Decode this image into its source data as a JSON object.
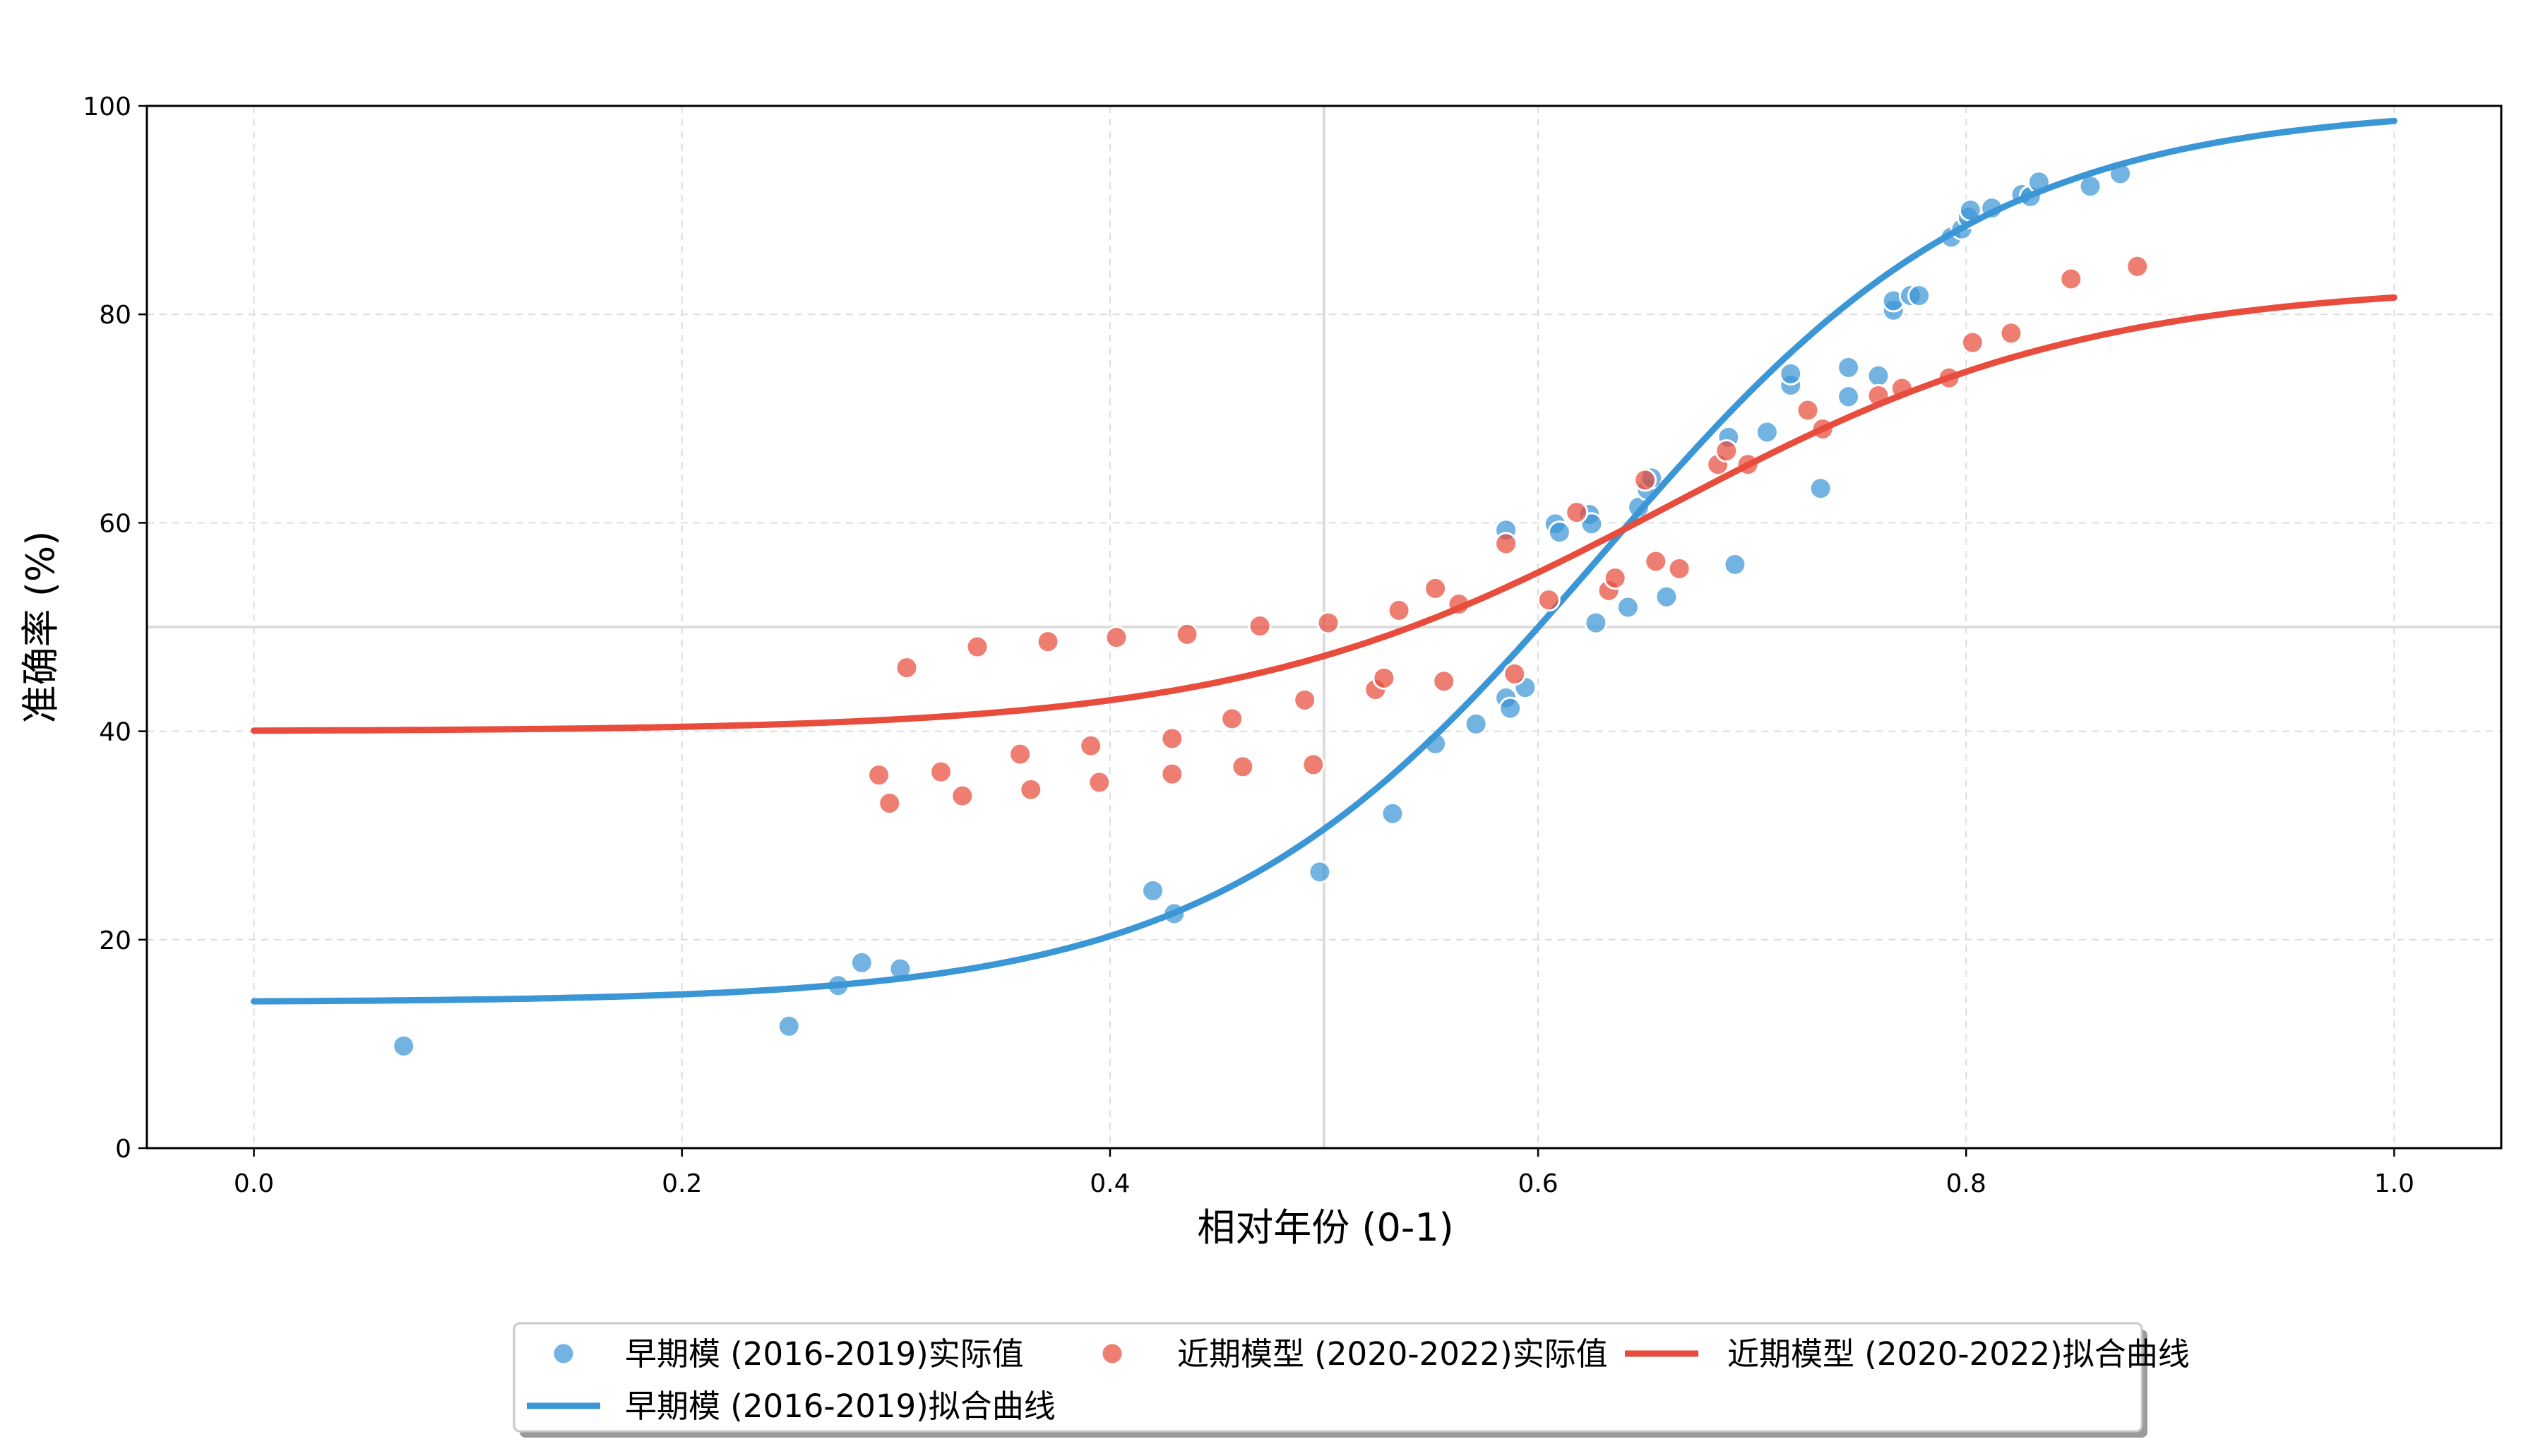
{
  "chart_data": {
    "type": "scatter",
    "title": "",
    "xlabel": "相对年份 (0-1)",
    "ylabel": "准确率 (%)",
    "xlim": [
      -0.05,
      1.05
    ],
    "ylim": [
      0,
      100
    ],
    "x_ticks": [
      0.0,
      0.2,
      0.4,
      0.6,
      0.8,
      1.0
    ],
    "y_ticks": [
      0,
      20,
      40,
      60,
      80,
      100
    ],
    "grid": true,
    "reference_lines": {
      "x": 0.5,
      "y": 50
    },
    "legend_position": "bottom-center",
    "series": [
      {
        "name": "早期模 (2016-2019)实际值",
        "kind": "scatter",
        "color": "#3b96d6",
        "points": [
          [
            0.07,
            9.8
          ],
          [
            0.25,
            11.7
          ],
          [
            0.273,
            15.6
          ],
          [
            0.284,
            17.8
          ],
          [
            0.302,
            17.2
          ],
          [
            0.42,
            24.7
          ],
          [
            0.43,
            22.5
          ],
          [
            0.498,
            26.5
          ],
          [
            0.532,
            32.1
          ],
          [
            0.552,
            38.8
          ],
          [
            0.571,
            40.7
          ],
          [
            0.585,
            43.2
          ],
          [
            0.587,
            42.2
          ],
          [
            0.594,
            44.2
          ],
          [
            0.585,
            59.3
          ],
          [
            0.608,
            59.9
          ],
          [
            0.61,
            59.1
          ],
          [
            0.624,
            60.8
          ],
          [
            0.625,
            59.9
          ],
          [
            0.627,
            50.4
          ],
          [
            0.642,
            51.9
          ],
          [
            0.647,
            61.5
          ],
          [
            0.651,
            63.2
          ],
          [
            0.653,
            64.3
          ],
          [
            0.66,
            52.9
          ],
          [
            0.689,
            68.2
          ],
          [
            0.692,
            56.0
          ],
          [
            0.707,
            68.7
          ],
          [
            0.718,
            73.2
          ],
          [
            0.718,
            74.3
          ],
          [
            0.732,
            63.3
          ],
          [
            0.745,
            72.1
          ],
          [
            0.745,
            74.9
          ],
          [
            0.759,
            74.1
          ],
          [
            0.766,
            80.4
          ],
          [
            0.766,
            81.3
          ],
          [
            0.774,
            81.8
          ],
          [
            0.778,
            81.8
          ],
          [
            0.793,
            87.4
          ],
          [
            0.798,
            88.2
          ],
          [
            0.801,
            89.3
          ],
          [
            0.802,
            90.0
          ],
          [
            0.812,
            90.2
          ],
          [
            0.826,
            91.5
          ],
          [
            0.83,
            91.3
          ],
          [
            0.834,
            92.7
          ],
          [
            0.858,
            92.3
          ],
          [
            0.872,
            93.5
          ]
        ]
      },
      {
        "name": "早期模 (2016-2019)拟合曲线",
        "kind": "line",
        "color": "#3b96d6",
        "curve": {
          "lower": 14,
          "upper": 100,
          "center": 0.63,
          "steepness": 11
        }
      },
      {
        "name": "近期模型 (2020-2022)实际值",
        "kind": "scatter",
        "color": "#e74c3c",
        "points": [
          [
            0.292,
            35.8
          ],
          [
            0.297,
            33.1
          ],
          [
            0.305,
            46.1
          ],
          [
            0.321,
            36.1
          ],
          [
            0.331,
            33.8
          ],
          [
            0.338,
            48.1
          ],
          [
            0.358,
            37.8
          ],
          [
            0.363,
            34.4
          ],
          [
            0.371,
            48.6
          ],
          [
            0.391,
            38.6
          ],
          [
            0.395,
            35.1
          ],
          [
            0.403,
            49.0
          ],
          [
            0.429,
            39.3
          ],
          [
            0.429,
            35.9
          ],
          [
            0.436,
            49.3
          ],
          [
            0.457,
            41.2
          ],
          [
            0.462,
            36.6
          ],
          [
            0.47,
            50.1
          ],
          [
            0.491,
            43.0
          ],
          [
            0.495,
            36.8
          ],
          [
            0.502,
            50.4
          ],
          [
            0.524,
            44.0
          ],
          [
            0.528,
            45.1
          ],
          [
            0.535,
            51.6
          ],
          [
            0.552,
            53.7
          ],
          [
            0.556,
            44.8
          ],
          [
            0.563,
            52.2
          ],
          [
            0.585,
            58.0
          ],
          [
            0.589,
            45.5
          ],
          [
            0.605,
            52.6
          ],
          [
            0.618,
            61.0
          ],
          [
            0.633,
            53.5
          ],
          [
            0.636,
            54.7
          ],
          [
            0.65,
            64.1
          ],
          [
            0.655,
            56.3
          ],
          [
            0.666,
            55.6
          ],
          [
            0.684,
            65.6
          ],
          [
            0.688,
            66.9
          ],
          [
            0.698,
            65.6
          ],
          [
            0.726,
            70.8
          ],
          [
            0.733,
            69.0
          ],
          [
            0.759,
            72.2
          ],
          [
            0.77,
            72.9
          ],
          [
            0.792,
            73.9
          ],
          [
            0.803,
            77.3
          ],
          [
            0.821,
            78.2
          ],
          [
            0.849,
            83.4
          ],
          [
            0.88,
            84.6
          ]
        ]
      },
      {
        "name": "近期模型 (2020-2022)拟合曲线",
        "kind": "line",
        "color": "#e74c3c",
        "curve": {
          "lower": 40,
          "upper": 83,
          "center": 0.66,
          "steepness": 10
        }
      }
    ],
    "legend": [
      {
        "label": "早期模 (2016-2019)实际值",
        "kind": "marker",
        "color": "#3b96d6"
      },
      {
        "label": "近期模型 (2020-2022)实际值",
        "kind": "marker",
        "color": "#e74c3c"
      },
      {
        "label": "近期模型 (2020-2022)拟合曲线",
        "kind": "line",
        "color": "#e74c3c"
      },
      {
        "label": "早期模 (2016-2019)拟合曲线",
        "kind": "line",
        "color": "#3b96d6"
      }
    ]
  }
}
